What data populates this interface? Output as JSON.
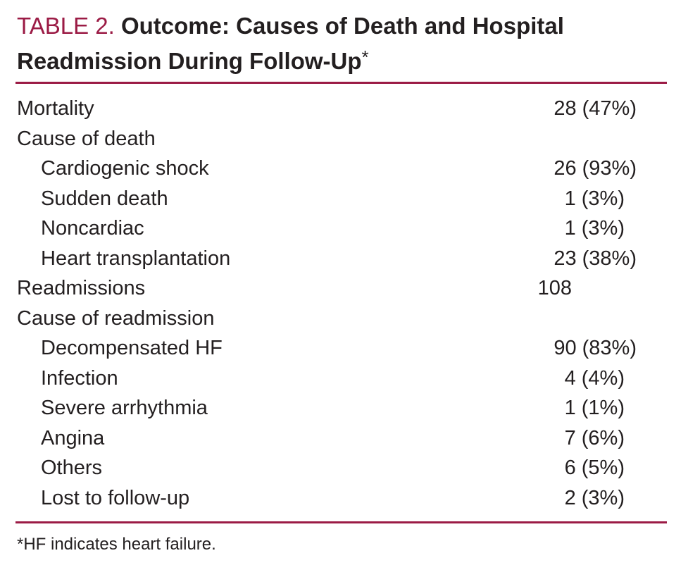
{
  "title": {
    "label": "TABLE 2.",
    "text": "Outcome: Causes of Death and Hospital Readmission During Follow-Up",
    "marker": "*"
  },
  "rows": [
    {
      "name": "Mortality",
      "value": "28 (47%)",
      "indent": false
    },
    {
      "name": "Cause of death",
      "value": "",
      "indent": false
    },
    {
      "name": "Cardiogenic shock",
      "value": "26 (93%)",
      "indent": true
    },
    {
      "name": "Sudden death",
      "value": "1 (3%)",
      "indent": true
    },
    {
      "name": "Noncardiac",
      "value": "1 (3%)",
      "indent": true
    },
    {
      "name": "Heart transplantation",
      "value": "23 (38%)",
      "indent": true
    },
    {
      "name": "Readmissions",
      "value": "108",
      "indent": false
    },
    {
      "name": "Cause of readmission",
      "value": "",
      "indent": false
    },
    {
      "name": "Decompensated HF",
      "value": "90 (83%)",
      "indent": true
    },
    {
      "name": "Infection",
      "value": "4 (4%)",
      "indent": true
    },
    {
      "name": "Severe arrhythmia",
      "value": "1 (1%)",
      "indent": true
    },
    {
      "name": "Angina",
      "value": "7 (6%)",
      "indent": true
    },
    {
      "name": "Others",
      "value": "6 (5%)",
      "indent": true
    },
    {
      "name": "Lost to follow-up",
      "value": "2 (3%)",
      "indent": true
    }
  ],
  "footnote": "*HF indicates heart failure.",
  "colors": {
    "accent": "#9b1b45",
    "text": "#231f20"
  }
}
